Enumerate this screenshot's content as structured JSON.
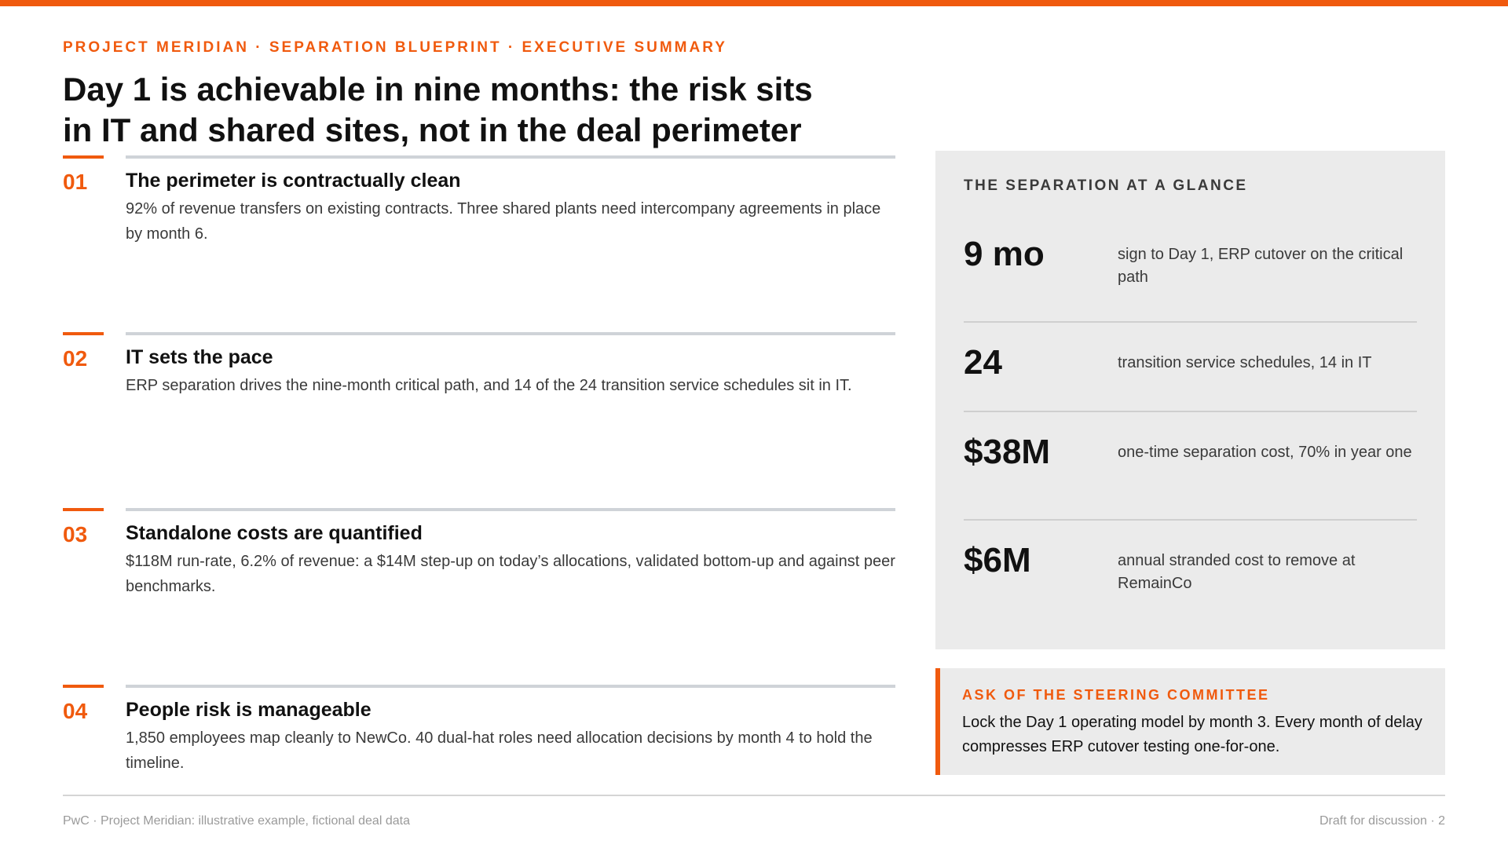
{
  "header": {
    "kicker": "PROJECT MERIDIAN · SEPARATION BLUEPRINT · EXECUTIVE SUMMARY",
    "title": "Day 1 is achievable in nine months: the risk sits in IT and shared sites, not in the deal perimeter"
  },
  "findings": [
    {
      "number": "01",
      "heading": "The perimeter is contractually clean",
      "body": "92% of revenue transfers on existing contracts. Three shared plants need intercompany agreements in place by month 6."
    },
    {
      "number": "02",
      "heading": "IT sets the pace",
      "body": "ERP separation drives the nine-month critical path, and 14 of the 24 transition service schedules sit in IT."
    },
    {
      "number": "03",
      "heading": "Standalone costs are quantified",
      "body": "$118M run-rate, 6.2% of revenue: a $14M step-up on today’s allocations, validated bottom-up and against peer benchmarks."
    },
    {
      "number": "04",
      "heading": "People risk is manageable",
      "body": "1,850 employees map cleanly to NewCo. 40 dual-hat roles need allocation decisions by month 4 to hold the timeline."
    }
  ],
  "glance": {
    "label": "THE SEPARATION AT A GLANCE",
    "stats": [
      {
        "value": "9 mo",
        "description": "sign to Day 1, ERP cutover on the critical path"
      },
      {
        "value": "24",
        "description": "transition service schedules, 14 in IT"
      },
      {
        "value": "$38M",
        "description": "one-time separation cost, 70% in year one"
      },
      {
        "value": "$6M",
        "description": "annual stranded cost to remove at RemainCo"
      }
    ]
  },
  "ask": {
    "label": "ASK OF THE STEERING COMMITTEE",
    "text": "Lock the Day 1 operating model by month 3. Every month of delay compresses ERP cutover testing one-for-one."
  },
  "footer": {
    "left": "PwC · Project Meridian: illustrative example, fictional deal data",
    "right": "Draft for discussion · 2"
  },
  "colors": {
    "accent": "#f05a0e",
    "panel": "#ebebeb",
    "rule": "#cfd3d8"
  }
}
